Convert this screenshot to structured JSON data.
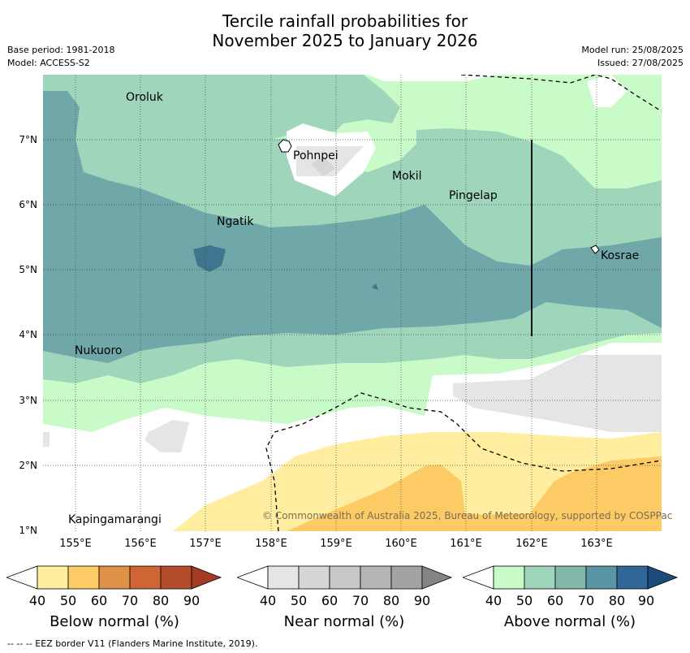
{
  "title_line1": "Tercile rainfall probabilities for",
  "title_line2": "November 2025 to January 2026",
  "base_period": "Base period: 1981-2018",
  "model": "Model: ACCESS-S2",
  "model_run": "Model run: 25/08/2025",
  "issued": "Issued: 27/08/2025",
  "lat_ticks": [
    "7°N",
    "6°N",
    "5°N",
    "4°N",
    "3°N",
    "2°N",
    "1°N"
  ],
  "lon_ticks": [
    "155°E",
    "156°E",
    "157°E",
    "158°E",
    "159°E",
    "160°E",
    "161°E",
    "162°E",
    "163°E"
  ],
  "places": {
    "oroluk": "Oroluk",
    "pohnpei": "Pohnpei",
    "mokil": "Mokil",
    "pingelap": "Pingelap",
    "ngatik": "Ngatik",
    "kosrae": "Kosrae",
    "nukuoro": "Nukuoro",
    "kapingamarangi": "Kapingamarangi"
  },
  "copyright": "© Commonwealth of Australia 2025, Bureau of Meteorology, supported by COSPPac",
  "colorbars": {
    "ticks": [
      "40",
      "50",
      "60",
      "70",
      "80",
      "90"
    ],
    "below": {
      "title": "Below normal (%)",
      "colors": [
        "#ffeea0",
        "#fdcb65",
        "#e09148",
        "#cf6435",
        "#b34c2b",
        "#a33b24"
      ]
    },
    "near": {
      "title": "Near normal (%)",
      "colors": [
        "#e5e5e5",
        "#d6d6d6",
        "#c8c8c8",
        "#b5b5b5",
        "#a3a3a3",
        "#858585"
      ]
    },
    "above": {
      "title": "Above normal (%)",
      "colors": [
        "#c9fbc9",
        "#9fd5bb",
        "#82b7a9",
        "#5a95a5",
        "#2f6797",
        "#1d4c7c"
      ]
    }
  },
  "footnote": "--  --  -- EEZ border V11 (Flanders Marine Institute, 2019)."
}
